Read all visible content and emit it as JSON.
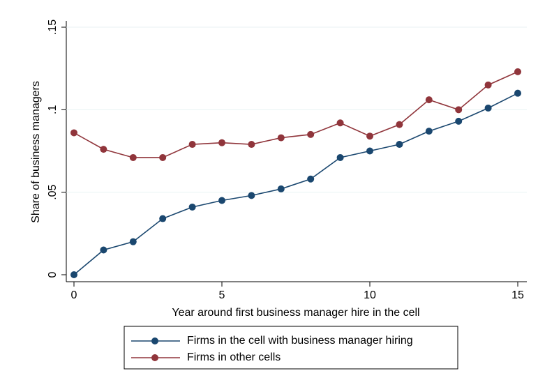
{
  "chart_data": {
    "type": "line",
    "x_label": "Year around first business manager hire in the cell",
    "y_label": "Share of business managers",
    "x": [
      0,
      1,
      2,
      3,
      4,
      5,
      6,
      7,
      8,
      9,
      10,
      11,
      12,
      13,
      14,
      15
    ],
    "series": [
      {
        "name": "Firms in the cell with business manager hiring",
        "color": "#1a476f",
        "values": [
          0,
          0.015,
          0.02,
          0.034,
          0.041,
          0.045,
          0.048,
          0.052,
          0.058,
          0.071,
          0.075,
          0.079,
          0.087,
          0.093,
          0.101,
          0.11
        ]
      },
      {
        "name": "Firms in other cells",
        "color": "#90353b",
        "values": [
          0.086,
          0.076,
          0.071,
          0.071,
          0.079,
          0.08,
          0.079,
          0.083,
          0.085,
          0.092,
          0.084,
          0.091,
          0.106,
          0.1,
          0.115,
          0.123
        ]
      }
    ],
    "xlim": [
      0,
      15
    ],
    "xticks": [
      0,
      5,
      10,
      15
    ],
    "ylim": [
      0,
      0.15
    ],
    "yticks": [
      0,
      {
        "value": 0.05,
        "label": ".05"
      },
      {
        "value": 0.1,
        "label": ".1"
      },
      {
        "value": 0.15,
        "label": ".15"
      }
    ],
    "grid": true,
    "legend": "bottom"
  }
}
